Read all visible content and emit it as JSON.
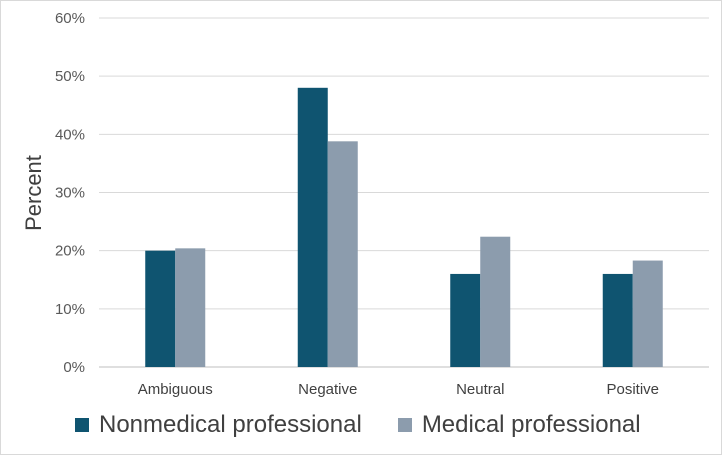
{
  "chart_data": {
    "type": "bar",
    "title": "",
    "xlabel": "",
    "ylabel": "Percent",
    "ylim": [
      0,
      60
    ],
    "yticks": [
      "0%",
      "10%",
      "20%",
      "30%",
      "40%",
      "50%",
      "60%"
    ],
    "categories": [
      "Ambiguous",
      "Negative",
      "Neutral",
      "Positive"
    ],
    "series": [
      {
        "name": "Nonmedical professional",
        "color": "#0f5470",
        "values": [
          20,
          48,
          16,
          16
        ]
      },
      {
        "name": "Medical professional",
        "color": "#8c9cad",
        "values": [
          20.4,
          38.8,
          22.4,
          18.3
        ]
      }
    ],
    "grid": true,
    "legend_position": "bottom-left"
  }
}
